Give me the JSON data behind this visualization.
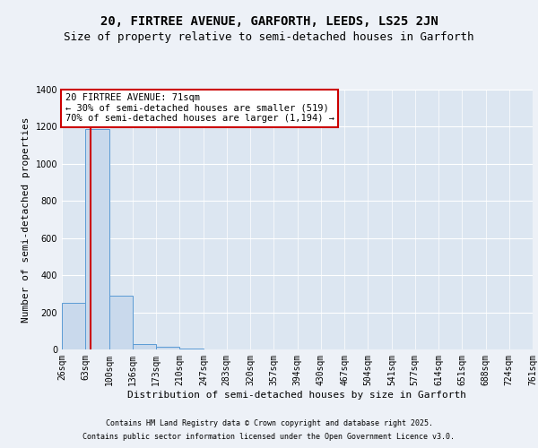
{
  "title_line1": "20, FIRTREE AVENUE, GARFORTH, LEEDS, LS25 2JN",
  "title_line2": "Size of property relative to semi-detached houses in Garforth",
  "xlabel": "Distribution of semi-detached houses by size in Garforth",
  "ylabel": "Number of semi-detached properties",
  "bin_edges": [
    26,
    63,
    100,
    136,
    173,
    210,
    247,
    283,
    320,
    357,
    394,
    430,
    467,
    504,
    541,
    577,
    614,
    651,
    688,
    724,
    761
  ],
  "bar_heights": [
    250,
    1190,
    290,
    30,
    15,
    3,
    0,
    0,
    0,
    0,
    0,
    0,
    0,
    0,
    0,
    0,
    0,
    0,
    0,
    0
  ],
  "bar_color": "#c9d9ec",
  "bar_edge_color": "#5b9bd5",
  "bg_color": "#dce6f1",
  "grid_color": "#ffffff",
  "property_size": 71,
  "annotation_text": "20 FIRTREE AVENUE: 71sqm\n← 30% of semi-detached houses are smaller (519)\n70% of semi-detached houses are larger (1,194) →",
  "annotation_box_color": "#ffffff",
  "annotation_box_edge": "#cc0000",
  "vline_color": "#cc0000",
  "ylim": [
    0,
    1400
  ],
  "yticks": [
    0,
    200,
    400,
    600,
    800,
    1000,
    1200,
    1400
  ],
  "footer_line1": "Contains HM Land Registry data © Crown copyright and database right 2025.",
  "footer_line2": "Contains public sector information licensed under the Open Government Licence v3.0.",
  "title_fontsize": 10,
  "subtitle_fontsize": 9,
  "axis_label_fontsize": 8,
  "tick_fontsize": 7,
  "annotation_fontsize": 7.5,
  "footer_fontsize": 6
}
